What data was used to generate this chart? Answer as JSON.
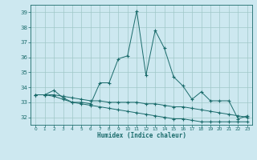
{
  "xlabel": "Humidex (Indice chaleur)",
  "background_color": "#cde8f0",
  "grid_color": "#a0c8c8",
  "line_color": "#1a6b6b",
  "xlim": [
    -0.5,
    23.5
  ],
  "ylim": [
    31.5,
    39.5
  ],
  "yticks": [
    32,
    33,
    34,
    35,
    36,
    37,
    38,
    39
  ],
  "xticks": [
    0,
    1,
    2,
    3,
    4,
    5,
    6,
    7,
    8,
    9,
    10,
    11,
    12,
    13,
    14,
    15,
    16,
    17,
    18,
    19,
    20,
    21,
    22,
    23
  ],
  "xtick_labels": [
    "0",
    "1",
    "2",
    "3",
    "4",
    "5",
    "6",
    "7",
    "8",
    "9",
    "10",
    "11",
    "12",
    "13",
    "14",
    "15",
    "16",
    "17",
    "18",
    "19",
    "20",
    "21",
    "22",
    "23"
  ],
  "curve1_x": [
    0,
    1,
    2,
    3,
    4,
    5,
    6,
    7,
    8,
    9,
    10,
    11,
    12,
    13,
    14,
    15,
    16,
    17,
    18,
    19,
    20,
    21,
    22,
    23
  ],
  "curve1_y": [
    33.5,
    33.5,
    33.8,
    33.3,
    33.0,
    33.0,
    32.9,
    34.3,
    34.3,
    35.9,
    36.1,
    39.1,
    34.8,
    37.8,
    36.6,
    34.7,
    34.1,
    33.2,
    33.7,
    33.1,
    33.1,
    33.1,
    31.9,
    32.1
  ],
  "curve2_x": [
    0,
    1,
    2,
    3,
    4,
    5,
    6,
    7,
    8,
    9,
    10,
    11,
    12,
    13,
    14,
    15,
    16,
    17,
    18,
    19,
    20,
    21,
    22,
    23
  ],
  "curve2_y": [
    33.5,
    33.5,
    33.5,
    33.4,
    33.3,
    33.2,
    33.1,
    33.1,
    33.0,
    33.0,
    33.0,
    33.0,
    32.9,
    32.9,
    32.8,
    32.7,
    32.7,
    32.6,
    32.5,
    32.4,
    32.3,
    32.2,
    32.1,
    32.0
  ],
  "curve3_x": [
    0,
    1,
    2,
    3,
    4,
    5,
    6,
    7,
    8,
    9,
    10,
    11,
    12,
    13,
    14,
    15,
    16,
    17,
    18,
    19,
    20,
    21,
    22,
    23
  ],
  "curve3_y": [
    33.5,
    33.5,
    33.4,
    33.2,
    33.0,
    32.9,
    32.8,
    32.7,
    32.6,
    32.5,
    32.4,
    32.3,
    32.2,
    32.1,
    32.0,
    31.9,
    31.9,
    31.8,
    31.7,
    31.7,
    31.7,
    31.7,
    31.7,
    31.7
  ]
}
